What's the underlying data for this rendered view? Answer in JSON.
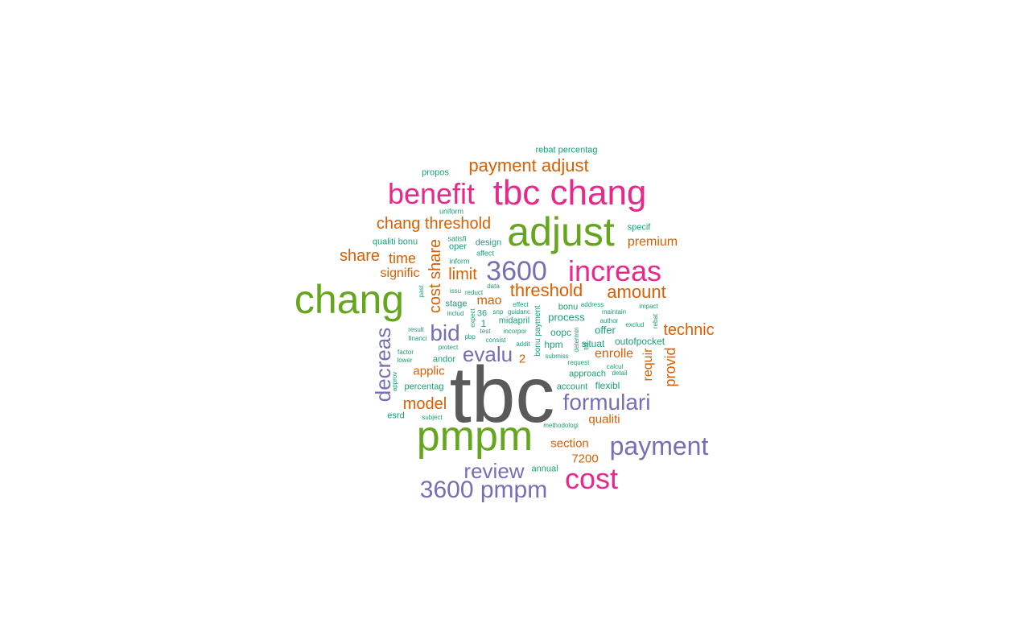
{
  "palette": {
    "gray": "#5a5a5a",
    "green": "#66a61e",
    "magenta": "#e7298a",
    "purple": "#7570b3",
    "orange": "#d95f02",
    "teal": "#1b9e77"
  },
  "words": [
    {
      "text": "tbc",
      "color": "gray",
      "weight": 1.0
    },
    {
      "text": "pmpm",
      "color": "green",
      "weight": 0.55
    },
    {
      "text": "chang",
      "color": "green",
      "weight": 0.52
    },
    {
      "text": "adjust",
      "color": "green",
      "weight": 0.54
    },
    {
      "text": "tbc chang",
      "color": "magenta",
      "weight": 0.48
    },
    {
      "text": "benefit",
      "color": "magenta",
      "weight": 0.42
    },
    {
      "text": "increas",
      "color": "magenta",
      "weight": 0.42
    },
    {
      "text": "cost",
      "color": "magenta",
      "weight": 0.42
    },
    {
      "text": "3600",
      "color": "purple",
      "weight": 0.4
    },
    {
      "text": "payment",
      "color": "purple",
      "weight": 0.38
    },
    {
      "text": "3600 pmpm",
      "color": "purple",
      "weight": 0.34
    },
    {
      "text": "formulari",
      "color": "purple",
      "weight": 0.32
    },
    {
      "text": "bid",
      "color": "purple",
      "weight": 0.3
    },
    {
      "text": "decreas",
      "color": "purple",
      "weight": 0.28
    },
    {
      "text": "review",
      "color": "purple",
      "weight": 0.28
    },
    {
      "text": "evalu",
      "color": "purple",
      "weight": 0.26
    },
    {
      "text": "payment adjust",
      "color": "orange",
      "weight": 0.25
    },
    {
      "text": "chang threshold",
      "color": "orange",
      "weight": 0.24
    },
    {
      "text": "threshold",
      "color": "orange",
      "weight": 0.24
    },
    {
      "text": "amount",
      "color": "orange",
      "weight": 0.23
    },
    {
      "text": "cost share",
      "color": "orange",
      "weight": 0.22
    },
    {
      "text": "limit",
      "color": "orange",
      "weight": 0.22
    },
    {
      "text": "model",
      "color": "orange",
      "weight": 0.21
    },
    {
      "text": "technic",
      "color": "orange",
      "weight": 0.21
    },
    {
      "text": "share",
      "color": "orange",
      "weight": 0.2
    },
    {
      "text": "provid",
      "color": "orange",
      "weight": 0.19
    },
    {
      "text": "time",
      "color": "orange",
      "weight": 0.17
    },
    {
      "text": "premium",
      "color": "orange",
      "weight": 0.16
    },
    {
      "text": "enrolle",
      "color": "orange",
      "weight": 0.16
    },
    {
      "text": "requir",
      "color": "orange",
      "weight": 0.16
    },
    {
      "text": "signific",
      "color": "orange",
      "weight": 0.15
    },
    {
      "text": "mao",
      "color": "orange",
      "weight": 0.15
    },
    {
      "text": "applic",
      "color": "orange",
      "weight": 0.15
    },
    {
      "text": "section",
      "color": "orange",
      "weight": 0.15
    },
    {
      "text": "qualiti",
      "color": "orange",
      "weight": 0.15
    },
    {
      "text": "7200",
      "color": "orange",
      "weight": 0.15
    },
    {
      "text": "2",
      "color": "orange",
      "weight": 0.15
    },
    {
      "text": "rebat percentag",
      "color": "teal",
      "weight": 0.06
    },
    {
      "text": "propos",
      "color": "teal",
      "weight": 0.06
    },
    {
      "text": "uniform",
      "color": "teal",
      "weight": 0.04
    },
    {
      "text": "qualiti bonu",
      "color": "teal",
      "weight": 0.07
    },
    {
      "text": "satisfi",
      "color": "teal",
      "weight": 0.05
    },
    {
      "text": "oper",
      "color": "teal",
      "weight": 0.07
    },
    {
      "text": "design",
      "color": "teal",
      "weight": 0.07
    },
    {
      "text": "affect",
      "color": "teal",
      "weight": 0.05
    },
    {
      "text": "specif",
      "color": "teal",
      "weight": 0.07
    },
    {
      "text": "inform",
      "color": "teal",
      "weight": 0.05
    },
    {
      "text": "past",
      "color": "teal",
      "weight": 0.04
    },
    {
      "text": "issu",
      "color": "teal",
      "weight": 0.04
    },
    {
      "text": "reduct",
      "color": "teal",
      "weight": 0.04
    },
    {
      "text": "data",
      "color": "teal",
      "weight": 0.04
    },
    {
      "text": "stage",
      "color": "teal",
      "weight": 0.07
    },
    {
      "text": "effect",
      "color": "teal",
      "weight": 0.04
    },
    {
      "text": "bonu payment",
      "color": "teal",
      "weight": 0.06
    },
    {
      "text": "bonu",
      "color": "teal",
      "weight": 0.07
    },
    {
      "text": "address",
      "color": "teal",
      "weight": 0.04
    },
    {
      "text": "impact",
      "color": "teal",
      "weight": 0.04
    },
    {
      "text": "maintain",
      "color": "teal",
      "weight": 0.04
    },
    {
      "text": "includ",
      "color": "teal",
      "weight": 0.04
    },
    {
      "text": "expect",
      "color": "teal",
      "weight": 0.04
    },
    {
      "text": "36",
      "color": "teal",
      "weight": 0.06
    },
    {
      "text": "snp",
      "color": "teal",
      "weight": 0.04
    },
    {
      "text": "guidanc",
      "color": "teal",
      "weight": 0.04
    },
    {
      "text": "process",
      "color": "teal",
      "weight": 0.08
    },
    {
      "text": "author",
      "color": "teal",
      "weight": 0.04
    },
    {
      "text": "exclud",
      "color": "teal",
      "weight": 0.04
    },
    {
      "text": "rebat",
      "color": "teal",
      "weight": 0.04
    },
    {
      "text": "1",
      "color": "teal",
      "weight": 0.06
    },
    {
      "text": "midapril",
      "color": "teal",
      "weight": 0.07
    },
    {
      "text": "result",
      "color": "teal",
      "weight": 0.04
    },
    {
      "text": "test",
      "color": "teal",
      "weight": 0.04
    },
    {
      "text": "incorpor",
      "color": "teal",
      "weight": 0.04
    },
    {
      "text": "oopc",
      "color": "teal",
      "weight": 0.07
    },
    {
      "text": "offer",
      "color": "teal",
      "weight": 0.08
    },
    {
      "text": "financi",
      "color": "teal",
      "weight": 0.04
    },
    {
      "text": "pbp",
      "color": "teal",
      "weight": 0.04
    },
    {
      "text": "consist",
      "color": "teal",
      "weight": 0.04
    },
    {
      "text": "protect",
      "color": "teal",
      "weight": 0.04
    },
    {
      "text": "addit",
      "color": "teal",
      "weight": 0.04
    },
    {
      "text": "hpm",
      "color": "teal",
      "weight": 0.07
    },
    {
      "text": "determin",
      "color": "teal",
      "weight": 0.04
    },
    {
      "text": "titl",
      "color": "teal",
      "weight": 0.05
    },
    {
      "text": "situat",
      "color": "teal",
      "weight": 0.07
    },
    {
      "text": "outofpocket",
      "color": "teal",
      "weight": 0.07
    },
    {
      "text": "factor",
      "color": "teal",
      "weight": 0.04
    },
    {
      "text": "lower",
      "color": "teal",
      "weight": 0.04
    },
    {
      "text": "andor",
      "color": "teal",
      "weight": 0.07
    },
    {
      "text": "submiss",
      "color": "teal",
      "weight": 0.04
    },
    {
      "text": "request",
      "color": "teal",
      "weight": 0.04
    },
    {
      "text": "calcul",
      "color": "teal",
      "weight": 0.04
    },
    {
      "text": "approv",
      "color": "teal",
      "weight": 0.04
    },
    {
      "text": "percentag",
      "color": "teal",
      "weight": 0.07
    },
    {
      "text": "approach",
      "color": "teal",
      "weight": 0.07
    },
    {
      "text": "detail",
      "color": "teal",
      "weight": 0.04
    },
    {
      "text": "account",
      "color": "teal",
      "weight": 0.07
    },
    {
      "text": "flexibl",
      "color": "teal",
      "weight": 0.08
    },
    {
      "text": "esrd",
      "color": "teal",
      "weight": 0.07
    },
    {
      "text": "subject",
      "color": "teal",
      "weight": 0.04
    },
    {
      "text": "methodologi",
      "color": "teal",
      "weight": 0.04
    },
    {
      "text": "annual",
      "color": "teal",
      "weight": 0.06
    }
  ]
}
